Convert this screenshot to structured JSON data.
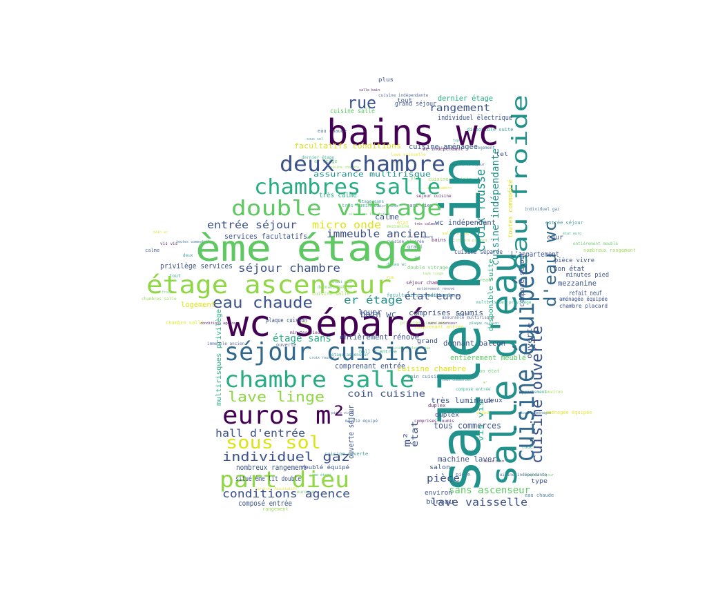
{
  "palette": {
    "dark_purple": "#440154",
    "indigo": "#3b528b",
    "teal_blue": "#31688e",
    "teal": "#21918c",
    "sea_green": "#27ad81",
    "green": "#5ec962",
    "lime": "#8fd744",
    "yellow": "#dde318"
  },
  "words": [
    {
      "text": "salle bain",
      "color": "#21918c"
    },
    {
      "text": "salle d'eau",
      "color": "#21918c"
    },
    {
      "text": "cuisine équipée",
      "color": "#31688e"
    },
    {
      "text": "eau froide",
      "color": "#21918c"
    },
    {
      "text": "d'eau wc",
      "color": "#31688e"
    },
    {
      "text": "cuisine ouverte",
      "color": "#3b528b"
    },
    {
      "text": "croix rousse",
      "color": "#21918c"
    },
    {
      "text": "cuisine indépendante",
      "color": "#21918c"
    },
    {
      "text": "bains wc",
      "color": "#440154"
    },
    {
      "text": "deux chambre",
      "color": "#3b528b"
    },
    {
      "text": "chambres salle",
      "color": "#27ad81"
    },
    {
      "text": "double vitrage",
      "color": "#5ec962"
    },
    {
      "text": "ème étage",
      "color": "#5ec962"
    },
    {
      "text": "étage ascenseur",
      "color": "#8fd744"
    },
    {
      "text": "eau chaude",
      "color": "#3b528b"
    },
    {
      "text": "wc séparé",
      "color": "#440154"
    },
    {
      "text": "séjour cuisine",
      "color": "#31688e"
    },
    {
      "text": "chambre salle",
      "color": "#27ad81"
    },
    {
      "text": "lave linge",
      "color": "#8fd744"
    },
    {
      "text": "euros m²",
      "color": "#440154"
    },
    {
      "text": "hall d'entrée",
      "color": "#3b528b"
    },
    {
      "text": "sous sol",
      "color": "#dde318"
    },
    {
      "text": "individuel gaz",
      "color": "#3b528b"
    },
    {
      "text": "part dieu",
      "color": "#8fd744"
    },
    {
      "text": "conditions agence",
      "color": "#3b528b"
    },
    {
      "text": "rue",
      "color": "#3b528b"
    },
    {
      "text": "rangement",
      "color": "#3b528b"
    },
    {
      "text": "individuel électrique",
      "color": "#3b528b"
    },
    {
      "text": "dernier étage",
      "color": "#27ad81"
    },
    {
      "text": "entrée séjour",
      "color": "#3b528b"
    },
    {
      "text": "micro onde",
      "color": "#dde318"
    },
    {
      "text": "immeuble ancien",
      "color": "#3b528b"
    },
    {
      "text": "séjour chambre",
      "color": "#3b528b"
    },
    {
      "text": "services facultatifs",
      "color": "#3b528b"
    },
    {
      "text": "privilège services",
      "color": "#3b528b"
    },
    {
      "text": "er étage",
      "color": "#21918c"
    },
    {
      "text": "état euro",
      "color": "#3b528b"
    },
    {
      "text": "étage sans",
      "color": "#27ad81"
    },
    {
      "text": "coin cuisine",
      "color": "#3b528b"
    },
    {
      "text": "entièrement rénové",
      "color": "#3b528b"
    },
    {
      "text": "comprises soumis",
      "color": "#3b528b"
    },
    {
      "text": "comprenant entrée",
      "color": "#3b528b"
    },
    {
      "text": "cuisine chambre",
      "color": "#dde318"
    },
    {
      "text": "entièrement meublé",
      "color": "#5ec962"
    },
    {
      "text": "très lumineux",
      "color": "#3b528b"
    },
    {
      "text": "tous commerces",
      "color": "#3b528b"
    },
    {
      "text": "machine laver",
      "color": "#3b528b"
    },
    {
      "text": "pièce",
      "color": "#3b528b"
    },
    {
      "text": "sans ascenseur",
      "color": "#5ec962"
    },
    {
      "text": "lave vaisselle",
      "color": "#3b528b"
    },
    {
      "text": "nombreux rangement",
      "color": "#3b528b"
    },
    {
      "text": "situé ème lit double",
      "color": "#3b528b"
    },
    {
      "text": "composé entrée",
      "color": "#3b528b"
    },
    {
      "text": "facultatifs conditions",
      "color": "#dde318"
    },
    {
      "text": "cuisine aménagée",
      "color": "#3b528b"
    },
    {
      "text": "assurance multirisque",
      "color": "#21918c"
    },
    {
      "text": "wc indépendant",
      "color": "#3b528b"
    },
    {
      "text": "bain wc",
      "color": "#3b528b"
    },
    {
      "text": "mezzanine",
      "color": "#3b528b"
    },
    {
      "text": "bon état",
      "color": "#3b528b"
    },
    {
      "text": "refait neuf",
      "color": "#3b528b"
    },
    {
      "text": "L'appartement",
      "color": "#3b528b"
    },
    {
      "text": "cour",
      "color": "#3b528b"
    },
    {
      "text": "ouverte séjour",
      "color": "#3b528b"
    },
    {
      "text": "vis vis",
      "color": "#27ad81"
    },
    {
      "text": "état",
      "color": "#3b528b"
    },
    {
      "text": "m²",
      "color": "#3b528b"
    },
    {
      "text": "donnant balcon",
      "color": "#3b528b"
    },
    {
      "text": "louer",
      "color": "#3b528b"
    },
    {
      "text": "plaque cuisson",
      "color": "#3b528b"
    },
    {
      "text": "logement",
      "color": "#dde318"
    },
    {
      "text": "calme",
      "color": "#3b528b"
    },
    {
      "text": "très calme",
      "color": "#27ad81"
    },
    {
      "text": "grand séjour",
      "color": "#3b528b"
    },
    {
      "text": "cuisine salle",
      "color": "#5ec962"
    },
    {
      "text": "composé séjour",
      "color": "#3b528b"
    },
    {
      "text": "multirisques privilège",
      "color": "#27ad81"
    },
    {
      "text": "disponible suite",
      "color": "#27ad81"
    },
    {
      "text": "toutes commodité",
      "color": "#dde318"
    },
    {
      "text": "cuisine séparée",
      "color": "#3b528b"
    },
    {
      "text": "duplex",
      "color": "#3b528b"
    },
    {
      "text": "salon",
      "color": "#3b528b"
    },
    {
      "text": "environ",
      "color": "#3b528b"
    },
    {
      "text": "bureau",
      "color": "#3b528b"
    },
    {
      "text": "type",
      "color": "#3b528b"
    },
    {
      "text": "deux",
      "color": "#3b528b"
    },
    {
      "text": "grand",
      "color": "#3b528b"
    },
    {
      "text": "pièce vivre",
      "color": "#3b528b"
    },
    {
      "text": "minutes pied",
      "color": "#3b528b"
    },
    {
      "text": "aménagée équipée",
      "color": "#3b528b"
    },
    {
      "text": "chambre placard",
      "color": "#3b528b"
    },
    {
      "text": "plus",
      "color": "#3b528b"
    },
    {
      "text": "tout",
      "color": "#3b528b"
    },
    {
      "text": "tel",
      "color": "#3b528b"
    },
    {
      "text": "meublé équipé",
      "color": "#3b528b"
    },
    {
      "text": "ouverte",
      "color": "#3b528b"
    }
  ]
}
